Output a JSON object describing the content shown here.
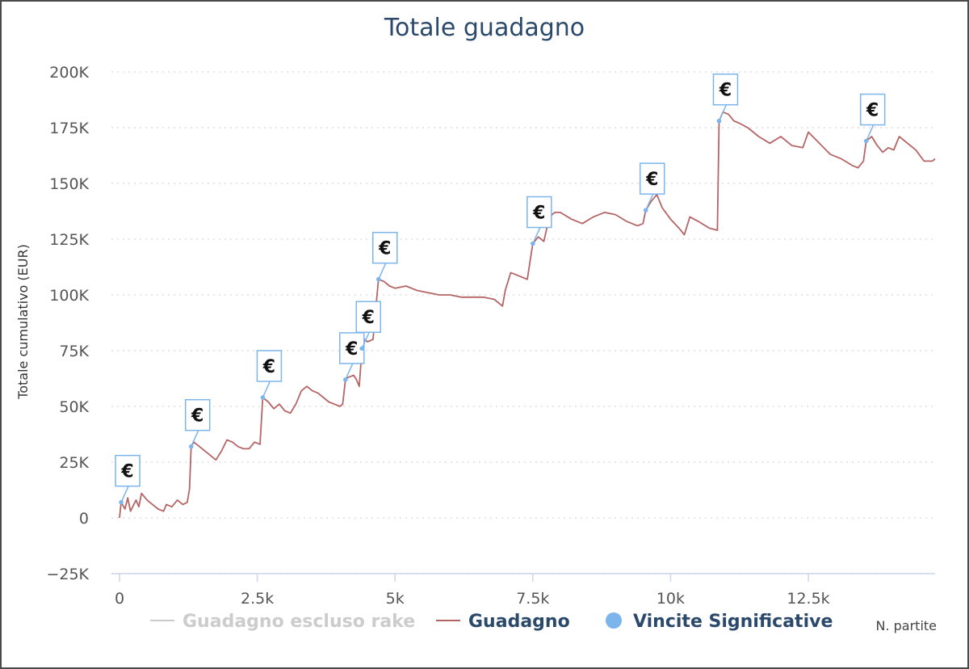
{
  "chart_data": {
    "type": "line",
    "title": "Totale guadagno",
    "xlabel": "N. partite",
    "ylabel": "Totale cumulativo (EUR)",
    "xlim": [
      0,
      14800
    ],
    "ylim": [
      -25000,
      200000
    ],
    "x_ticks": [
      0,
      2500,
      5000,
      7500,
      10000,
      12500
    ],
    "x_tick_labels": [
      "0",
      "2.5k",
      "5k",
      "7.5k",
      "10k",
      "12.5k"
    ],
    "y_ticks": [
      -25000,
      0,
      25000,
      50000,
      75000,
      100000,
      125000,
      150000,
      175000,
      200000
    ],
    "y_tick_labels": [
      "−25K",
      "0",
      "25K",
      "50K",
      "75K",
      "100K",
      "125K",
      "150K",
      "175K",
      "200K"
    ],
    "grid": "horizontal-dotted",
    "legend": {
      "position": "bottom",
      "items": [
        {
          "label": "Guadagno escluso rake",
          "color": "#cccccc",
          "marker": "line"
        },
        {
          "label": "Guadagno",
          "color": "#b56565",
          "marker": "line"
        },
        {
          "label": "Vincite Significative",
          "color": "#7cb5ec",
          "marker": "circle"
        }
      ]
    },
    "series": [
      {
        "name": "Guadagno",
        "color": "#b56565",
        "points": [
          [
            0,
            0
          ],
          [
            30,
            7000
          ],
          [
            100,
            4000
          ],
          [
            150,
            9000
          ],
          [
            200,
            3000
          ],
          [
            300,
            8000
          ],
          [
            350,
            5000
          ],
          [
            400,
            11000
          ],
          [
            500,
            8000
          ],
          [
            600,
            6000
          ],
          [
            700,
            4000
          ],
          [
            800,
            3000
          ],
          [
            850,
            6000
          ],
          [
            950,
            5000
          ],
          [
            1050,
            8000
          ],
          [
            1150,
            6000
          ],
          [
            1230,
            7000
          ],
          [
            1270,
            13000
          ],
          [
            1300,
            32000
          ],
          [
            1350,
            34000
          ],
          [
            1450,
            32000
          ],
          [
            1550,
            30000
          ],
          [
            1650,
            28000
          ],
          [
            1750,
            26000
          ],
          [
            1850,
            30000
          ],
          [
            1950,
            35000
          ],
          [
            2050,
            34000
          ],
          [
            2150,
            32000
          ],
          [
            2250,
            31000
          ],
          [
            2350,
            31000
          ],
          [
            2450,
            34000
          ],
          [
            2550,
            33000
          ],
          [
            2600,
            54000
          ],
          [
            2700,
            52000
          ],
          [
            2800,
            49000
          ],
          [
            2900,
            51000
          ],
          [
            3000,
            48000
          ],
          [
            3100,
            47000
          ],
          [
            3200,
            51000
          ],
          [
            3300,
            57000
          ],
          [
            3400,
            59000
          ],
          [
            3500,
            57000
          ],
          [
            3600,
            56000
          ],
          [
            3700,
            54000
          ],
          [
            3800,
            52000
          ],
          [
            3900,
            51000
          ],
          [
            4000,
            50000
          ],
          [
            4050,
            51000
          ],
          [
            4100,
            62000
          ],
          [
            4150,
            63000
          ],
          [
            4250,
            64000
          ],
          [
            4300,
            62000
          ],
          [
            4350,
            59000
          ],
          [
            4400,
            76000
          ],
          [
            4450,
            80000
          ],
          [
            4500,
            79000
          ],
          [
            4600,
            80000
          ],
          [
            4700,
            107000
          ],
          [
            4800,
            106000
          ],
          [
            4900,
            104000
          ],
          [
            5000,
            103000
          ],
          [
            5200,
            104000
          ],
          [
            5400,
            102000
          ],
          [
            5600,
            101000
          ],
          [
            5800,
            100000
          ],
          [
            6000,
            100000
          ],
          [
            6200,
            99000
          ],
          [
            6400,
            99000
          ],
          [
            6600,
            99000
          ],
          [
            6800,
            98000
          ],
          [
            6950,
            95000
          ],
          [
            7000,
            102000
          ],
          [
            7100,
            110000
          ],
          [
            7200,
            109000
          ],
          [
            7300,
            108000
          ],
          [
            7400,
            107000
          ],
          [
            7500,
            123000
          ],
          [
            7600,
            126000
          ],
          [
            7700,
            124000
          ],
          [
            7800,
            135000
          ],
          [
            7900,
            137000
          ],
          [
            8000,
            137000
          ],
          [
            8200,
            134000
          ],
          [
            8400,
            132000
          ],
          [
            8600,
            135000
          ],
          [
            8800,
            137000
          ],
          [
            9000,
            136000
          ],
          [
            9200,
            133000
          ],
          [
            9400,
            131000
          ],
          [
            9500,
            132000
          ],
          [
            9550,
            138000
          ],
          [
            9650,
            142000
          ],
          [
            9750,
            145000
          ],
          [
            9850,
            139000
          ],
          [
            10000,
            134000
          ],
          [
            10150,
            130000
          ],
          [
            10250,
            127000
          ],
          [
            10350,
            135000
          ],
          [
            10500,
            133000
          ],
          [
            10700,
            130000
          ],
          [
            10850,
            129000
          ],
          [
            10880,
            178000
          ],
          [
            10950,
            182000
          ],
          [
            11050,
            181000
          ],
          [
            11150,
            178000
          ],
          [
            11250,
            177000
          ],
          [
            11400,
            175000
          ],
          [
            11600,
            171000
          ],
          [
            11800,
            168000
          ],
          [
            12000,
            171000
          ],
          [
            12200,
            167000
          ],
          [
            12400,
            166000
          ],
          [
            12500,
            173000
          ],
          [
            12700,
            168000
          ],
          [
            12900,
            163000
          ],
          [
            13100,
            161000
          ],
          [
            13300,
            158000
          ],
          [
            13400,
            157000
          ],
          [
            13500,
            160000
          ],
          [
            13550,
            169000
          ],
          [
            13650,
            171000
          ],
          [
            13750,
            167000
          ],
          [
            13850,
            164000
          ],
          [
            13950,
            166000
          ],
          [
            14050,
            165000
          ],
          [
            14150,
            171000
          ],
          [
            14300,
            168000
          ],
          [
            14450,
            165000
          ],
          [
            14600,
            160000
          ],
          [
            14750,
            160000
          ],
          [
            14800,
            161000
          ]
        ]
      },
      {
        "name": "Vincite Significative",
        "color": "#7cb5ec",
        "flag_label": "€",
        "points": [
          [
            30,
            7000
          ],
          [
            1300,
            32000
          ],
          [
            2600,
            54000
          ],
          [
            4100,
            62000
          ],
          [
            4400,
            76000
          ],
          [
            4700,
            107000
          ],
          [
            7500,
            123000
          ],
          [
            9550,
            138000
          ],
          [
            10880,
            178000
          ],
          [
            13550,
            169000
          ]
        ]
      }
    ]
  }
}
